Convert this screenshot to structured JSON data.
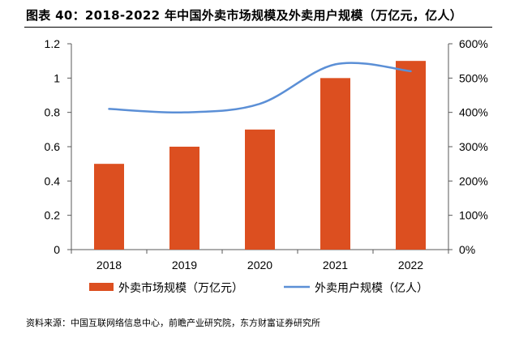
{
  "title": "图表 40：2018-2022 年中国外卖市场规模及外卖用户规模（万亿元，亿人）",
  "source": "资料来源：中国互联网络信息中心，前瞻产业研究院，东方财富证券研究所",
  "colors": {
    "bar": "#DC4F20",
    "line": "#5B8FD6",
    "axis": "#595959"
  },
  "chart_data": {
    "type": "bar+line",
    "categories": [
      "2018",
      "2019",
      "2020",
      "2021",
      "2022"
    ],
    "series": [
      {
        "name": "外卖市场规模（万亿元）",
        "type": "bar",
        "axis": "left",
        "values": [
          0.5,
          0.6,
          0.7,
          1.0,
          1.1
        ]
      },
      {
        "name": "外卖用户规模（亿人）",
        "type": "line",
        "axis": "right",
        "smooth": true,
        "values": [
          410,
          400,
          425,
          540,
          520
        ]
      }
    ],
    "left_axis": {
      "ylim": [
        0,
        1.2
      ],
      "ticks": [
        "0",
        "0.2",
        "0.4",
        "0.6",
        "0.8",
        "1",
        "1.2"
      ]
    },
    "right_axis": {
      "ylim": [
        0,
        600
      ],
      "ticks": [
        "0%",
        "100%",
        "200%",
        "300%",
        "400%",
        "500%",
        "600%"
      ]
    },
    "grid": false,
    "legend_position": "bottom"
  }
}
